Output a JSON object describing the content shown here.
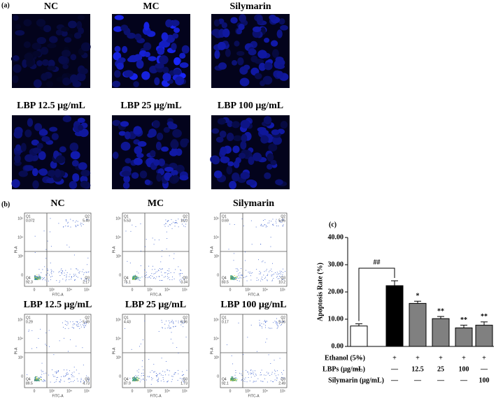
{
  "panel_labels": [
    "(a)",
    "(b)",
    "(c)"
  ],
  "images": {
    "titles": [
      "NC",
      "MC",
      "Silymarin",
      "LBP  12.5 μg/mL",
      "LBP  25 μg/mL",
      "LBP  100 μg/mL"
    ]
  },
  "flow": {
    "y_label": "PI-A",
    "x_label": "FITC-A",
    "quadrants": [
      "Q1",
      "Q2",
      "Q3",
      "Q4"
    ],
    "yticks": [
      "10⁵",
      "10⁴",
      "10³",
      "0"
    ],
    "xticks": [
      "0",
      "10³",
      "10⁴",
      "10⁵"
    ],
    "plots": [
      {
        "title": "NC",
        "q": [
          "0.072",
          "5.49",
          "2.17",
          "92.3"
        ]
      },
      {
        "title": "MC",
        "q": [
          "5.53",
          "16.0",
          "3.34",
          "75.1"
        ]
      },
      {
        "title": "Silymarin",
        "q": [
          "0.69",
          "5.65",
          "10.2",
          "83.5"
        ]
      },
      {
        "title": "LBP  12.5 μg/mL",
        "q": [
          "0.29",
          "5.49",
          "4.73",
          "89.5"
        ]
      },
      {
        "title": "LBP  25 μg/mL",
        "q": [
          "4.43",
          "5.96",
          "1.73",
          "87.9"
        ]
      },
      {
        "title": "LBP  100 μg/mL",
        "q": [
          "0.17",
          "5.26",
          "2.49",
          "92.1"
        ]
      }
    ]
  },
  "chart_data": {
    "type": "bar",
    "y_label": "Apoptosis Rate (%)",
    "categories": [
      null,
      null,
      null,
      null,
      null,
      null
    ],
    "values": [
      7.5,
      22.3,
      15.8,
      10.2,
      6.8,
      7.8
    ],
    "errors": [
      0.8,
      1.8,
      0.8,
      0.8,
      1.0,
      1.2
    ],
    "colors": [
      "#ffffff",
      "#000000",
      "#808080",
      "#808080",
      "#808080",
      "#808080"
    ],
    "annotations": [
      null,
      null,
      "*",
      "**",
      "**",
      "**"
    ],
    "bracket_label": "##",
    "ylim": [
      0,
      40
    ],
    "yticks": [
      {
        "value": 0,
        "label": "0.00"
      },
      {
        "value": 10,
        "label": "10.00"
      },
      {
        "value": 20,
        "label": "20.00"
      },
      {
        "value": 30,
        "label": "30.00"
      },
      {
        "value": 40,
        "label": "40.00"
      }
    ],
    "table": [
      {
        "label": "Ethanol (5%)",
        "cells": [
          "—",
          "+",
          "+",
          "+",
          "+",
          "+"
        ]
      },
      {
        "label": "LBPs (μg/mL)",
        "cells": [
          "—",
          "—",
          "12.5",
          "25",
          "100",
          "—"
        ]
      },
      {
        "label": "Silymarin (μg/mL)",
        "cells": [
          null,
          "—",
          "—",
          "—",
          "—",
          "100"
        ]
      }
    ]
  }
}
